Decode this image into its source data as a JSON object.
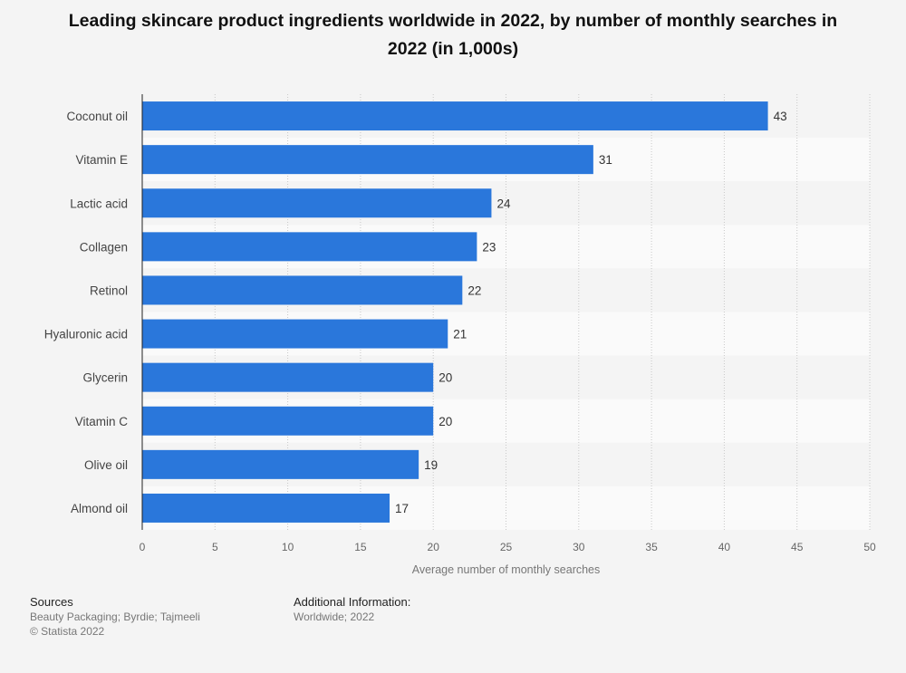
{
  "title": "Leading skincare product ingredients worldwide in 2022, by number of monthly searches in 2022 (in 1,000s)",
  "chart_data": {
    "type": "bar",
    "orientation": "horizontal",
    "categories": [
      "Coconut oil",
      "Vitamin E",
      "Lactic acid",
      "Collagen",
      "Retinol",
      "Hyaluronic acid",
      "Glycerin",
      "Vitamin C",
      "Olive oil",
      "Almond oil"
    ],
    "values": [
      43,
      31,
      24,
      23,
      22,
      21,
      20,
      20,
      19,
      17
    ],
    "xlabel": "Average number of monthly searches",
    "ylabel": "",
    "xlim": [
      0,
      50
    ],
    "xticks": [
      0,
      5,
      10,
      15,
      20,
      25,
      30,
      35,
      40,
      45,
      50
    ],
    "grid": true,
    "bar_color": "#2a77db",
    "data_labels": true
  },
  "footer": {
    "sources_heading": "Sources",
    "sources_text": "Beauty Packaging; Byrdie; Tajmeeli",
    "copyright": "© Statista 2022",
    "additional_heading": "Additional Information:",
    "additional_text": "Worldwide; 2022"
  }
}
